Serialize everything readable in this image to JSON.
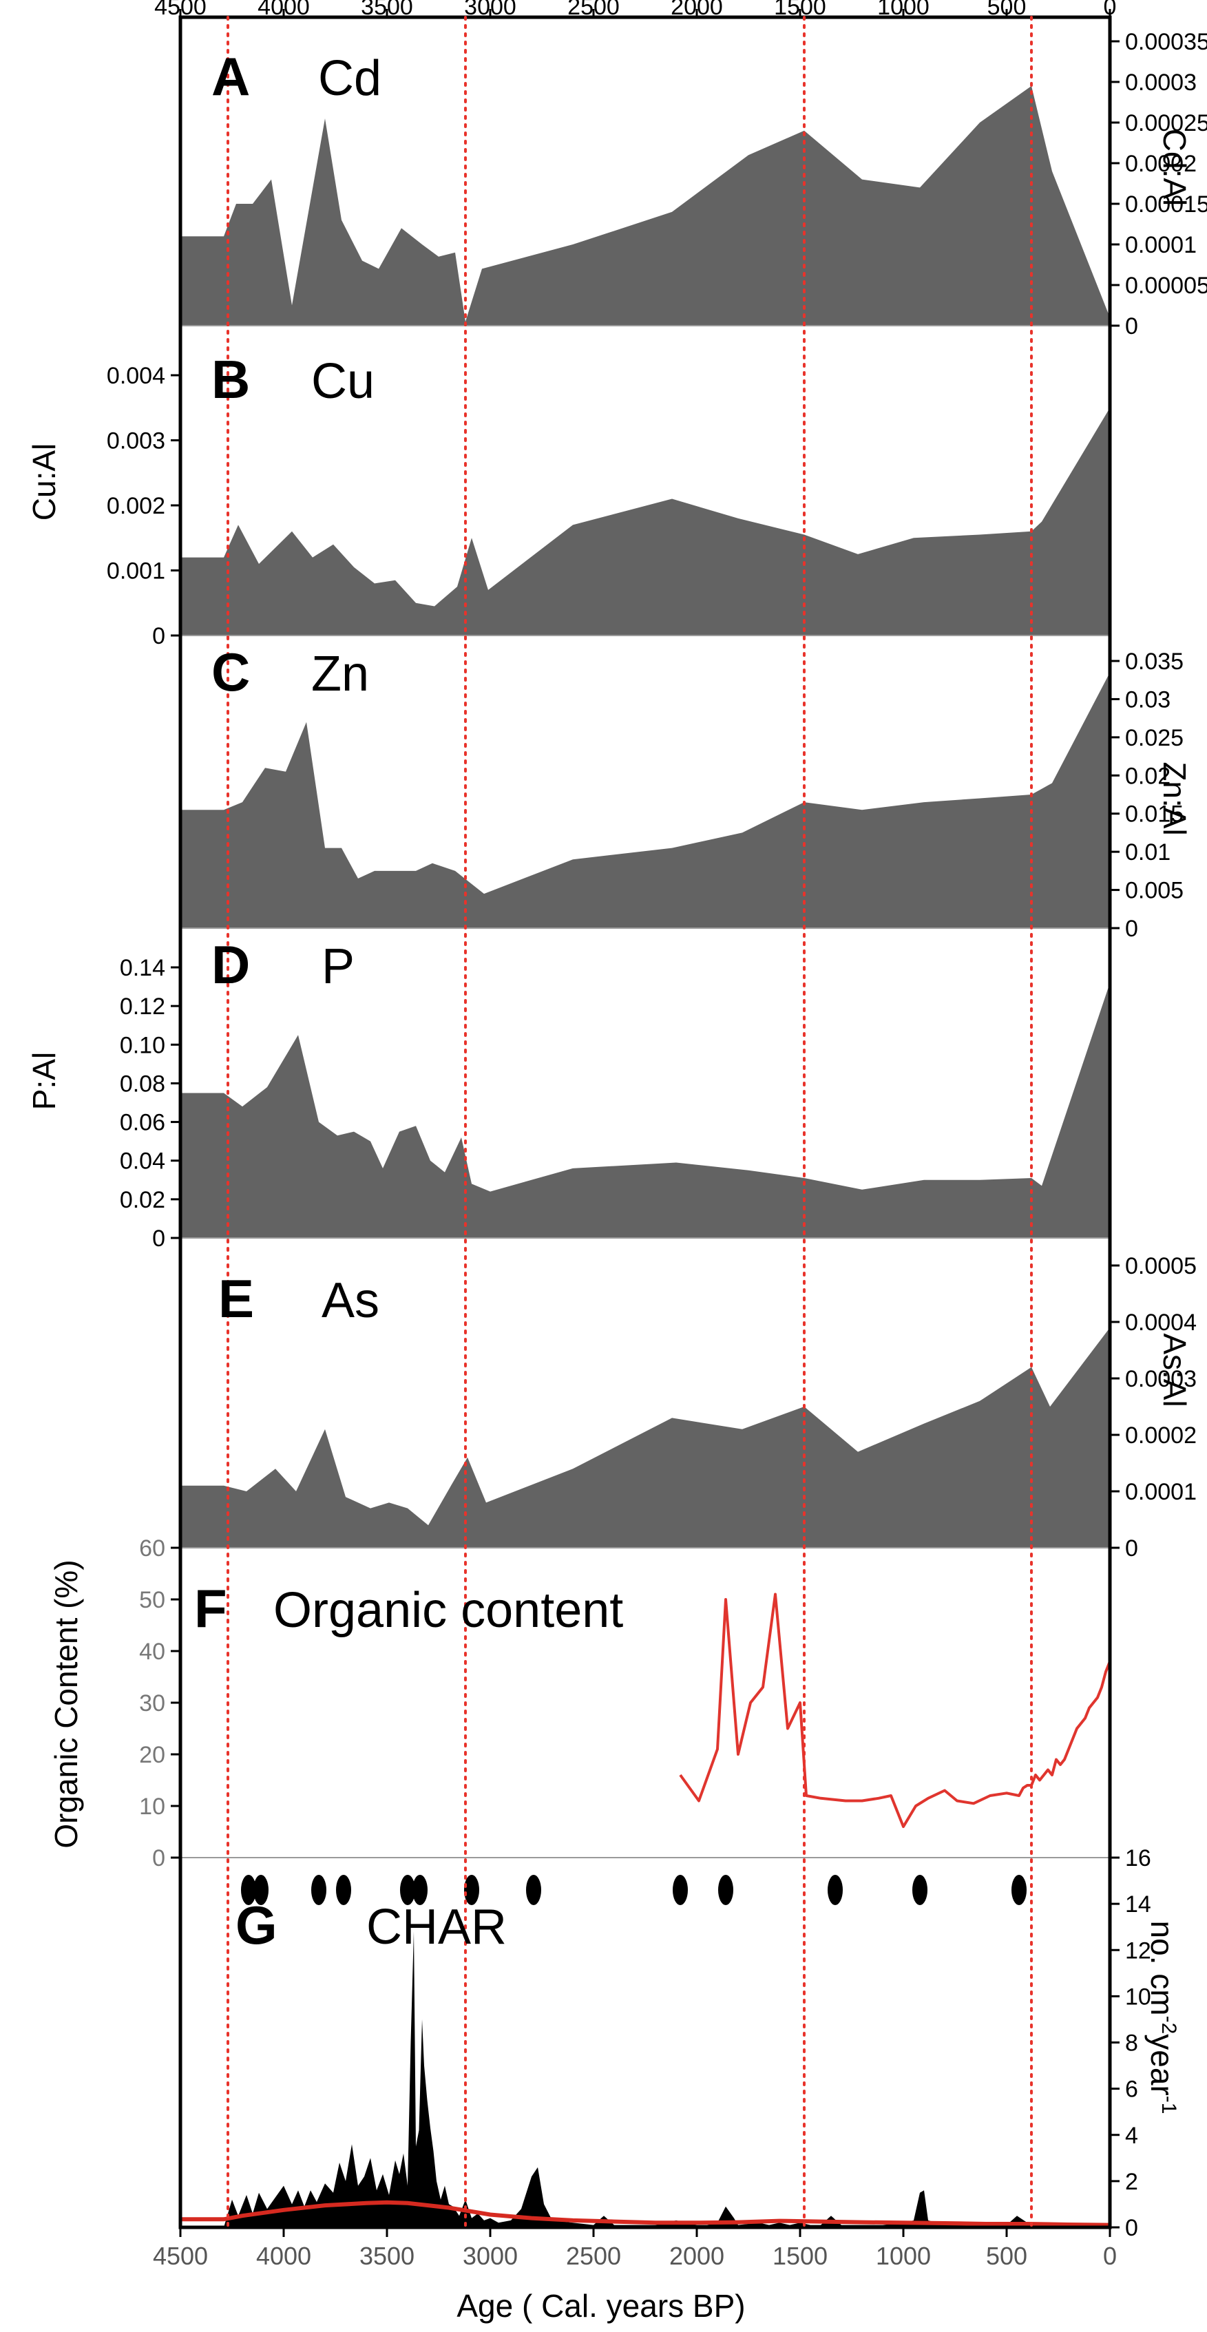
{
  "figure": {
    "x_axis": {
      "label": "Age ( Cal. years BP)",
      "ticks": [
        4500,
        4000,
        3500,
        3000,
        2500,
        2000,
        1500,
        1000,
        500,
        0
      ],
      "range": [
        4500,
        0
      ],
      "reversed": true
    },
    "reference_lines": [
      4270,
      3120,
      1480,
      380
    ],
    "colors": {
      "fill": "#636363",
      "ref_line": "#e8332b",
      "organic": "#e0352e",
      "char_trend": "#d62a20",
      "char_fill": "#000000"
    }
  },
  "chart_data": [
    {
      "type": "area",
      "panel": "A",
      "element": "Cd",
      "ylabel": "Cd:Al",
      "yaxis_side": "right",
      "ylim": [
        0,
        0.00035
      ],
      "yticks": [
        0,
        5e-05,
        0.0001,
        0.00015,
        0.0002,
        0.00025,
        0.0003,
        0.00035
      ],
      "ytick_labels": [
        "0",
        "0.00005",
        "0.0001",
        "0.00015",
        "0.0002",
        "0.00025",
        "0.0003",
        "0.00035"
      ],
      "x": [
        4500,
        4290,
        4230,
        4150,
        4060,
        3960,
        3800,
        3720,
        3620,
        3540,
        3430,
        3330,
        3250,
        3170,
        3120,
        3040,
        2600,
        2120,
        1750,
        1480,
        1200,
        920,
        630,
        380,
        280,
        0
      ],
      "values": [
        0.00011,
        0.00011,
        0.00015,
        0.00015,
        0.00018,
        2.5e-05,
        0.000255,
        0.00013,
        8e-05,
        7e-05,
        0.00012,
        0.0001,
        8.5e-05,
        9e-05,
        5e-06,
        7e-05,
        0.0001,
        0.00014,
        0.00021,
        0.00024,
        0.00018,
        0.00017,
        0.00025,
        0.000295,
        0.00019,
        1e-05
      ]
    },
    {
      "type": "area",
      "panel": "B",
      "element": "Cu",
      "ylabel": "Cu:Al",
      "yaxis_side": "left",
      "ylim": [
        0,
        0.004
      ],
      "yticks": [
        0,
        0.001,
        0.002,
        0.003,
        0.004
      ],
      "ytick_labels": [
        "0",
        "0.001",
        "0.002",
        "0.003",
        "0.004"
      ],
      "x": [
        4500,
        4290,
        4220,
        4120,
        3960,
        3860,
        3760,
        3660,
        3560,
        3460,
        3360,
        3270,
        3160,
        3090,
        3010,
        2600,
        2120,
        1800,
        1480,
        1220,
        950,
        630,
        380,
        330,
        0
      ],
      "values": [
        0.0012,
        0.0012,
        0.0017,
        0.0011,
        0.0016,
        0.0012,
        0.0014,
        0.00105,
        0.0008,
        0.00085,
        0.0005,
        0.00045,
        0.00075,
        0.0015,
        0.0007,
        0.0017,
        0.0021,
        0.0018,
        0.00155,
        0.00125,
        0.0015,
        0.00155,
        0.0016,
        0.00175,
        0.0035
      ]
    },
    {
      "type": "area",
      "panel": "C",
      "element": "Zn",
      "ylabel": "Zn:Al",
      "yaxis_side": "right",
      "ylim": [
        0,
        0.035
      ],
      "yticks": [
        0,
        0.005,
        0.01,
        0.015,
        0.02,
        0.025,
        0.03,
        0.035
      ],
      "ytick_labels": [
        "0",
        "0.005",
        "0.01",
        "0.015",
        "0.02",
        "0.025",
        "0.03",
        "0.035"
      ],
      "x": [
        4500,
        4290,
        4200,
        4090,
        3990,
        3890,
        3800,
        3720,
        3640,
        3560,
        3460,
        3360,
        3280,
        3170,
        3030,
        2600,
        2120,
        1780,
        1480,
        1200,
        900,
        630,
        380,
        280,
        0
      ],
      "values": [
        0.0155,
        0.0155,
        0.0165,
        0.021,
        0.0205,
        0.027,
        0.0105,
        0.0105,
        0.0065,
        0.0075,
        0.0075,
        0.0075,
        0.0085,
        0.0075,
        0.0045,
        0.009,
        0.0105,
        0.0125,
        0.0165,
        0.0155,
        0.0165,
        0.017,
        0.0175,
        0.019,
        0.0335
      ]
    },
    {
      "type": "area",
      "panel": "D",
      "element": "P",
      "ylabel": "P:Al",
      "yaxis_side": "left",
      "ylim": [
        0,
        0.14
      ],
      "yticks": [
        0,
        0.02,
        0.04,
        0.06,
        0.08,
        0.1,
        0.12,
        0.14
      ],
      "ytick_labels": [
        "0",
        "0.02",
        "0.04",
        "0.06",
        "0.08",
        "0.10",
        "0.12",
        "0.14"
      ],
      "x": [
        4500,
        4290,
        4200,
        4080,
        3930,
        3830,
        3740,
        3660,
        3580,
        3520,
        3440,
        3360,
        3290,
        3220,
        3140,
        3090,
        3000,
        2600,
        2100,
        1750,
        1480,
        1200,
        900,
        630,
        380,
        330,
        0
      ],
      "values": [
        0.075,
        0.075,
        0.068,
        0.078,
        0.105,
        0.06,
        0.053,
        0.055,
        0.05,
        0.036,
        0.055,
        0.058,
        0.04,
        0.034,
        0.052,
        0.028,
        0.024,
        0.036,
        0.039,
        0.035,
        0.031,
        0.025,
        0.03,
        0.03,
        0.031,
        0.027,
        0.132
      ]
    },
    {
      "type": "area",
      "panel": "E",
      "element": "As",
      "ylabel": "As:Al",
      "yaxis_side": "right",
      "ylim": [
        0,
        0.0005
      ],
      "yticks": [
        0,
        0.0001,
        0.0002,
        0.0003,
        0.0004,
        0.0005
      ],
      "ytick_labels": [
        "0",
        "0.0001",
        "0.0002",
        "0.0003",
        "0.0004",
        "0.0005"
      ],
      "x": [
        4500,
        4290,
        4180,
        4040,
        3940,
        3800,
        3700,
        3580,
        3490,
        3400,
        3300,
        3190,
        3110,
        3020,
        2600,
        2120,
        1780,
        1480,
        1220,
        900,
        630,
        380,
        290,
        0
      ],
      "values": [
        0.00011,
        0.00011,
        0.0001,
        0.00014,
        0.0001,
        0.00021,
        9e-05,
        7e-05,
        8e-05,
        7e-05,
        4e-05,
        0.00011,
        0.00016,
        8e-05,
        0.00014,
        0.00023,
        0.00021,
        0.00025,
        0.00017,
        0.00022,
        0.00026,
        0.00032,
        0.00025,
        0.00039
      ]
    },
    {
      "type": "line",
      "panel": "F",
      "title": "Organic content",
      "ylabel": "Organic Content (%)",
      "yaxis_side": "left",
      "ylim": [
        0,
        60
      ],
      "yticks": [
        0,
        10,
        20,
        30,
        40,
        50,
        60
      ],
      "ytick_labels": [
        "0",
        "10",
        "20",
        "30",
        "40",
        "50",
        "60"
      ],
      "series": [
        {
          "x": [
            2080,
            1990,
            1900,
            1860,
            1800,
            1740,
            1680,
            1620,
            1560,
            1500,
            1470,
            1400,
            1280,
            1200,
            1120,
            1060,
            1000,
            940,
            880,
            800,
            740,
            660,
            580,
            500,
            440,
            420,
            400,
            380,
            360,
            340,
            320,
            300,
            280,
            260,
            240,
            220,
            200,
            180,
            160,
            140,
            120,
            100,
            80,
            60,
            40,
            20,
            0
          ],
          "values": [
            16,
            11,
            21,
            50,
            20,
            30,
            33,
            51,
            25,
            30,
            12,
            11.5,
            11,
            11,
            11.5,
            12,
            6,
            10,
            11.5,
            13,
            11,
            10.5,
            12,
            12.5,
            12,
            13.5,
            14,
            14,
            16,
            15,
            16,
            17,
            16,
            19,
            18,
            19,
            21,
            23,
            25,
            26,
            27,
            29,
            30,
            31,
            33,
            36,
            38
          ]
        }
      ]
    },
    {
      "type": "area",
      "panel": "G",
      "title": "CHAR",
      "ylabel": "no. cm-2year-1",
      "ylabel_parts": [
        "no. cm",
        "-2",
        "year",
        "-1"
      ],
      "yaxis_side": "right",
      "ylim": [
        0,
        16
      ],
      "yticks": [
        0,
        2,
        4,
        6,
        8,
        10,
        12,
        14,
        16
      ],
      "ytick_labels": [
        "0",
        "2",
        "4",
        "6",
        "8",
        "10",
        "12",
        "14",
        "16"
      ],
      "x": [
        4500,
        4290,
        4250,
        4220,
        4180,
        4150,
        4120,
        4080,
        4040,
        4000,
        3960,
        3930,
        3900,
        3870,
        3840,
        3800,
        3760,
        3730,
        3700,
        3670,
        3640,
        3610,
        3580,
        3550,
        3520,
        3490,
        3460,
        3440,
        3420,
        3400,
        3385,
        3370,
        3360,
        3345,
        3330,
        3320,
        3305,
        3290,
        3275,
        3260,
        3240,
        3220,
        3200,
        3180,
        3150,
        3120,
        3090,
        3060,
        3030,
        3000,
        2960,
        2900,
        2850,
        2800,
        2770,
        2740,
        2700,
        2600,
        2500,
        2450,
        2400,
        2300,
        2200,
        2100,
        2000,
        1950,
        1900,
        1860,
        1820,
        1800,
        1700,
        1650,
        1600,
        1550,
        1500,
        1450,
        1400,
        1350,
        1300,
        1250,
        1200,
        1100,
        1000,
        950,
        920,
        900,
        880,
        800,
        700,
        600,
        500,
        450,
        400,
        300,
        200,
        100,
        0
      ],
      "values": [
        0,
        0,
        1.2,
        0.5,
        1.4,
        0.6,
        1.5,
        0.8,
        1.3,
        1.8,
        1.0,
        1.6,
        0.9,
        1.6,
        1.1,
        1.9,
        1.5,
        2.8,
        2.0,
        3.6,
        1.8,
        2.2,
        3.0,
        1.6,
        2.3,
        1.4,
        2.9,
        2.3,
        3.2,
        1.8,
        8.0,
        12.8,
        3.5,
        4.2,
        9.0,
        7.0,
        5.5,
        4.3,
        3.3,
        2.0,
        1.2,
        1.8,
        1.0,
        0.9,
        0.5,
        1.2,
        0.4,
        0.6,
        0.3,
        0.4,
        0.2,
        0.3,
        0.8,
        2.2,
        2.6,
        1.0,
        0.3,
        0.2,
        0.1,
        0.5,
        0.1,
        0.1,
        0.1,
        0.3,
        0.1,
        0.1,
        0.2,
        0.9,
        0.4,
        0.1,
        0.2,
        0.1,
        0.2,
        0.1,
        0.2,
        0.1,
        0.1,
        0.5,
        0.1,
        0.1,
        0.1,
        0.1,
        0.2,
        0.3,
        1.5,
        1.6,
        0.3,
        0.1,
        0.1,
        0.1,
        0.1,
        0.5,
        0.2,
        0.1,
        0.1,
        0.1,
        0
      ],
      "trend": {
        "x": [
          4500,
          4290,
          4200,
          4000,
          3800,
          3600,
          3500,
          3400,
          3300,
          3200,
          3100,
          3000,
          2800,
          2600,
          2400,
          2200,
          2000,
          1800,
          1600,
          1400,
          1200,
          1000,
          800,
          600,
          400,
          200,
          0
        ],
        "values": [
          0.35,
          0.35,
          0.5,
          0.75,
          0.95,
          1.05,
          1.08,
          1.05,
          0.95,
          0.85,
          0.7,
          0.55,
          0.4,
          0.3,
          0.25,
          0.2,
          0.2,
          0.22,
          0.28,
          0.25,
          0.22,
          0.2,
          0.18,
          0.15,
          0.15,
          0.12,
          0.1
        ]
      },
      "dated_samples": [
        4170,
        4110,
        3830,
        3710,
        3400,
        3340,
        3090,
        2790,
        2080,
        1860,
        1330,
        920,
        440
      ]
    }
  ]
}
